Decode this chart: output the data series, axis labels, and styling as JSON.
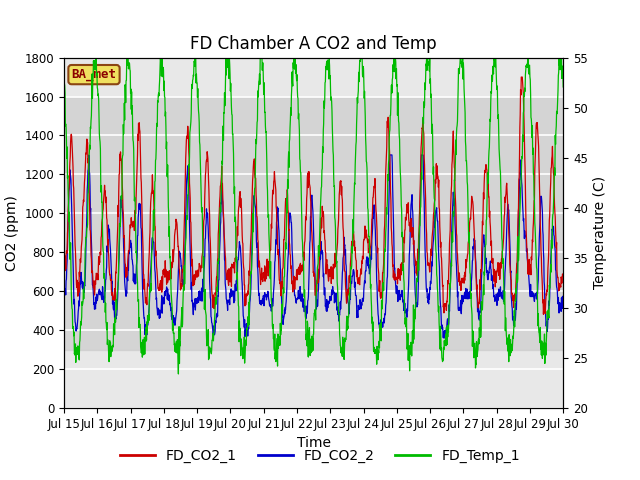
{
  "title": "FD Chamber A CO2 and Temp",
  "xlabel": "Time",
  "ylabel_left": "CO2 (ppm)",
  "ylabel_right": "Temperature (C)",
  "ylim_left": [
    0,
    1800
  ],
  "ylim_right": [
    20,
    55
  ],
  "xlim": [
    0,
    360
  ],
  "x_tick_labels": [
    "Jul 15",
    "Jul 16",
    "Jul 17",
    "Jul 18",
    "Jul 19",
    "Jul 20",
    "Jul 21",
    "Jul 22",
    "Jul 23",
    "Jul 24",
    "Jul 25",
    "Jul 26",
    "Jul 27",
    "Jul 28",
    "Jul 29",
    "Jul 30"
  ],
  "x_tick_positions": [
    0,
    24,
    48,
    72,
    96,
    120,
    144,
    168,
    192,
    216,
    240,
    264,
    288,
    312,
    336,
    360
  ],
  "color_co2_1": "#cc0000",
  "color_co2_2": "#0000cc",
  "color_temp": "#00bb00",
  "legend_labels": [
    "FD_CO2_1",
    "FD_CO2_2",
    "FD_Temp_1"
  ],
  "ba_met_label": "BA_met",
  "shaded_ymin": 300,
  "shaded_ymax": 1600,
  "plot_bg": "#e8e8e8",
  "fig_bg": "#ffffff",
  "grid_color": "#ffffff",
  "title_fontsize": 12,
  "label_fontsize": 10,
  "tick_fontsize": 8.5,
  "legend_fontsize": 10
}
